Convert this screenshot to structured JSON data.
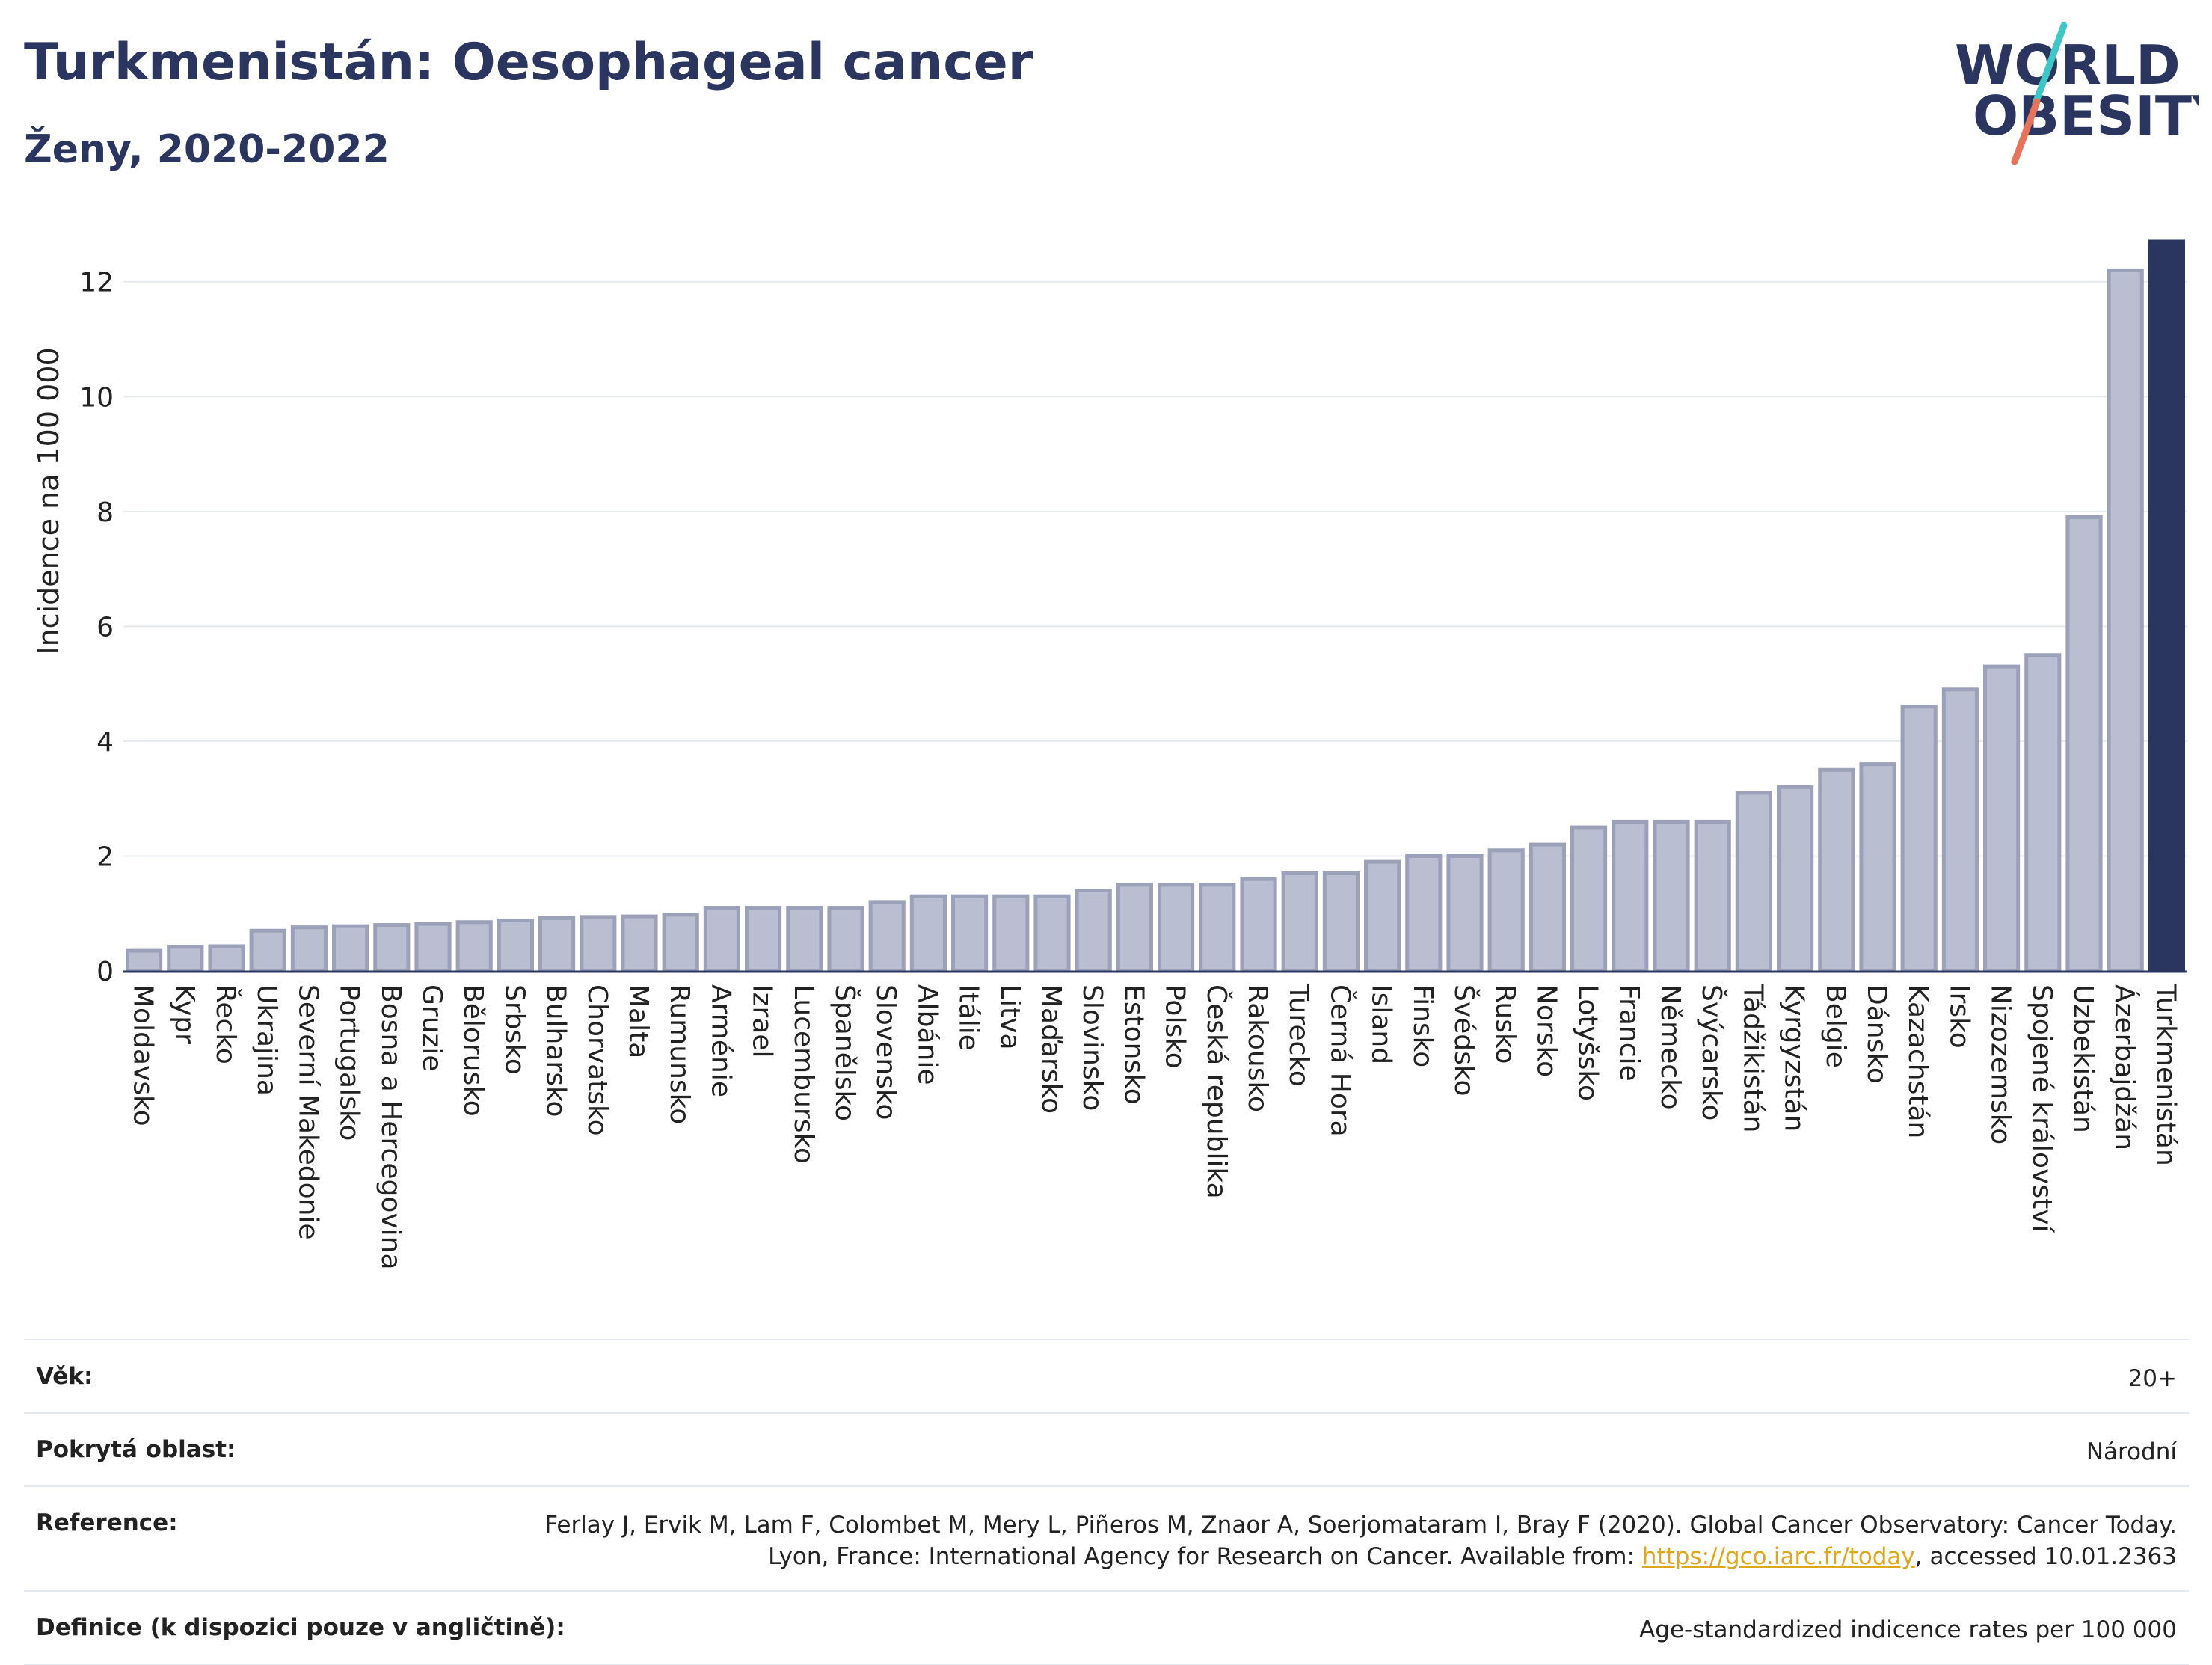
{
  "header": {
    "title": "Turkmenistán: Oesophageal cancer",
    "subtitle": "Ženy, 2020-2022"
  },
  "logo": {
    "line1": "WORLD",
    "line2": "OBESITY",
    "accent_colors": [
      "#3ec6c9",
      "#e8735a"
    ]
  },
  "colors": {
    "bar_fill": "#b9bfd0",
    "bar_stroke": "#9aa1b8",
    "highlight": "#2a3560",
    "grid": "#e6e9ef"
  },
  "chart_data": {
    "type": "bar",
    "title": "Turkmenistán: Oesophageal cancer",
    "subtitle": "Ženy, 2020-2022",
    "xlabel": "",
    "ylabel": "Incidence na 100 000",
    "ylim": [
      0,
      12.7
    ],
    "yticks": [
      0,
      2,
      4,
      6,
      8,
      10,
      12
    ],
    "grid": true,
    "highlight_category": "Turkmenistán",
    "categories": [
      "Moldavsko",
      "Kypr",
      "Řecko",
      "Ukrajina",
      "Severní Makedonie",
      "Portugalsko",
      "Bosna a Hercegovina",
      "Gruzie",
      "Bělorusko",
      "Srbsko",
      "Bulharsko",
      "Chorvatsko",
      "Malta",
      "Rumunsko",
      "Arménie",
      "Izrael",
      "Lucembursko",
      "Španělsko",
      "Slovensko",
      "Albánie",
      "Itálie",
      "Litva",
      "Maďarsko",
      "Slovinsko",
      "Estonsko",
      "Polsko",
      "Česká republika",
      "Rakousko",
      "Turecko",
      "Černá Hora",
      "Island",
      "Finsko",
      "Švédsko",
      "Rusko",
      "Norsko",
      "Lotyšsko",
      "Francie",
      "Německo",
      "Švýcarsko",
      "Tádžikistán",
      "Kyrgyzstán",
      "Belgie",
      "Dánsko",
      "Kazachstán",
      "Irsko",
      "Nizozemsko",
      "Spojené království",
      "Uzbekistán",
      "Ázerbajdžán",
      "Turkmenistán"
    ],
    "values": [
      0.35,
      0.42,
      0.43,
      0.7,
      0.76,
      0.78,
      0.8,
      0.82,
      0.85,
      0.88,
      0.92,
      0.94,
      0.95,
      0.98,
      1.1,
      1.1,
      1.1,
      1.1,
      1.2,
      1.3,
      1.3,
      1.3,
      1.3,
      1.4,
      1.5,
      1.5,
      1.5,
      1.6,
      1.7,
      1.7,
      1.9,
      2.0,
      2.0,
      2.1,
      2.2,
      2.5,
      2.6,
      2.6,
      2.6,
      3.1,
      3.2,
      3.5,
      3.6,
      4.6,
      4.9,
      5.3,
      5.5,
      7.9,
      12.2,
      12.7
    ]
  },
  "meta": [
    {
      "label": "Věk:",
      "value": "20+"
    },
    {
      "label": "Pokrytá oblast:",
      "value": "Národní"
    },
    {
      "label": "Reference:",
      "value_before": "Ferlay J, Ervik M, Lam F, Colombet M, Mery L, Piñeros M, Znaor A, Soerjomataram I, Bray F (2020). Global Cancer Observatory: Cancer Today. Lyon, France: International Agency for Research on Cancer. Available from: ",
      "link": "https://gco.iarc.fr/today",
      "value_after": ", accessed 10.01.2363"
    },
    {
      "label": "Definice (k dispozici pouze v angličtině):",
      "value": "Age-standardized indicence rates per 100 000"
    }
  ]
}
